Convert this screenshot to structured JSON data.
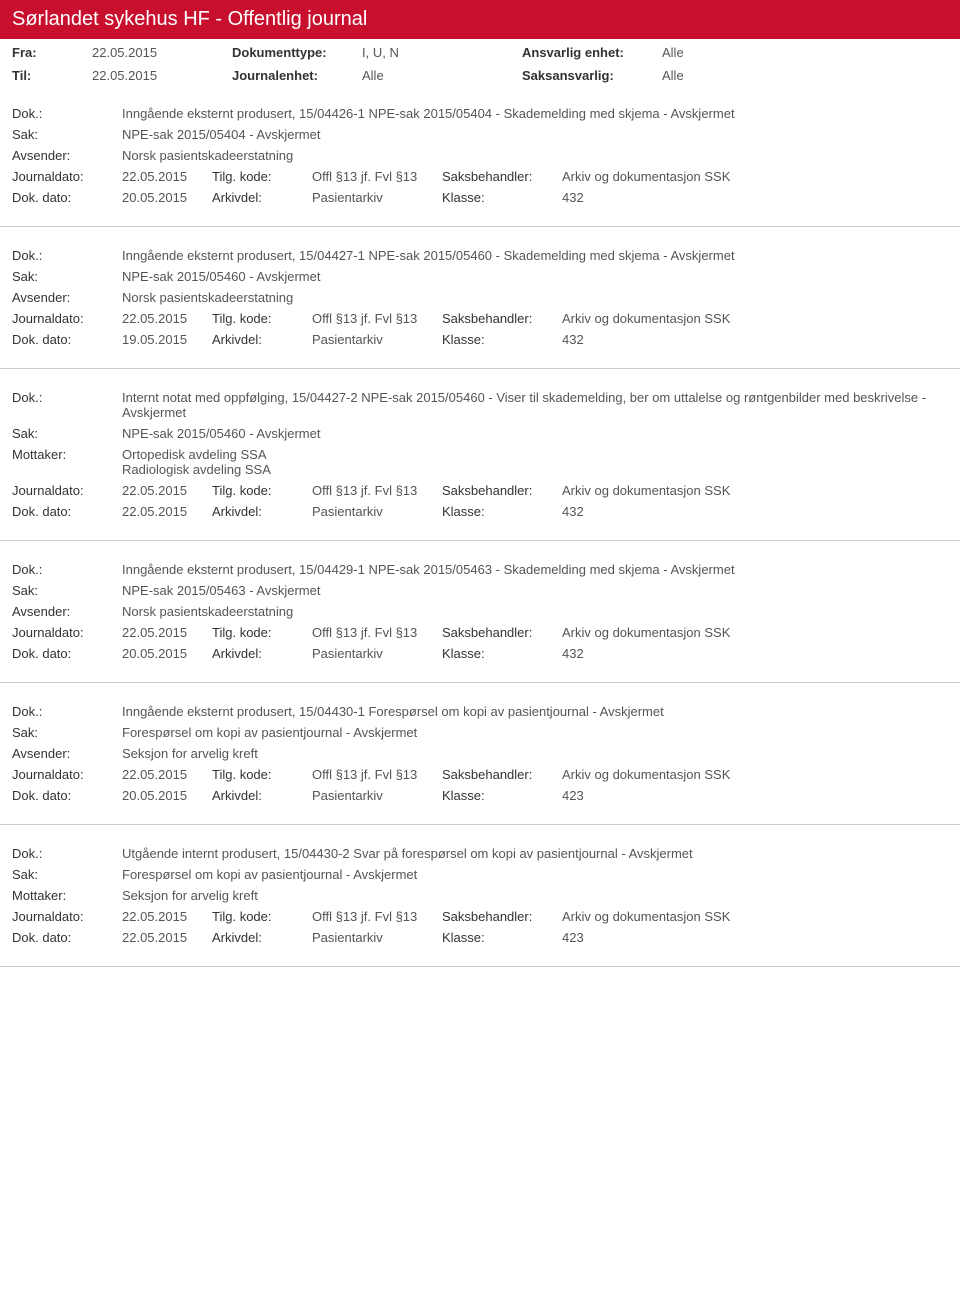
{
  "colors": {
    "header_bg": "#c8102e",
    "header_text": "#ffffff",
    "body_text": "#333333",
    "value_text": "#555555",
    "divider": "#cccccc"
  },
  "header": {
    "title": "Sørlandet sykehus HF - Offentlig journal"
  },
  "filters": {
    "fra_label": "Fra:",
    "fra_value": "22.05.2015",
    "til_label": "Til:",
    "til_value": "22.05.2015",
    "doktype_label": "Dokumenttype:",
    "doktype_value": "I, U, N",
    "journalenhet_label": "Journalenhet:",
    "journalenhet_value": "Alle",
    "ansvarlig_label": "Ansvarlig enhet:",
    "ansvarlig_value": "Alle",
    "saksansvarlig_label": "Saksansvarlig:",
    "saksansvarlig_value": "Alle"
  },
  "labels": {
    "dok": "Dok.:",
    "sak": "Sak:",
    "avsender": "Avsender:",
    "mottaker": "Mottaker:",
    "journaldato": "Journaldato:",
    "tilgkode": "Tilg. kode:",
    "saksbehandler": "Saksbehandler:",
    "dokdato": "Dok. dato:",
    "arkivdel": "Arkivdel:",
    "klasse": "Klasse:"
  },
  "entries": [
    {
      "dok": "Inngående eksternt produsert, 15/04426-1 NPE-sak 2015/05404 - Skademelding med skjema - Avskjermet",
      "sak": "NPE-sak 2015/05404 - Avskjermet",
      "party_label": "Avsender:",
      "party_value": "Norsk pasientskadeerstatning",
      "journaldato": "22.05.2015",
      "tilgkode": "Offl §13 jf. Fvl §13",
      "saksbehandler": "Arkiv og dokumentasjon SSK",
      "dokdato": "20.05.2015",
      "arkivdel": "Pasientarkiv",
      "klasse": "432"
    },
    {
      "dok": "Inngående eksternt produsert, 15/04427-1 NPE-sak 2015/05460 - Skademelding med skjema - Avskjermet",
      "sak": "NPE-sak 2015/05460 - Avskjermet",
      "party_label": "Avsender:",
      "party_value": "Norsk pasientskadeerstatning",
      "journaldato": "22.05.2015",
      "tilgkode": "Offl §13 jf. Fvl §13",
      "saksbehandler": "Arkiv og dokumentasjon SSK",
      "dokdato": "19.05.2015",
      "arkivdel": "Pasientarkiv",
      "klasse": "432"
    },
    {
      "dok": "Internt notat med oppfølging, 15/04427-2 NPE-sak 2015/05460 - Viser til skademelding, ber om uttalelse og røntgenbilder med beskrivelse - Avskjermet",
      "sak": "NPE-sak 2015/05460 - Avskjermet",
      "party_label": "Mottaker:",
      "party_value": "Ortopedisk avdeling SSA\nRadiologisk avdeling SSA",
      "journaldato": "22.05.2015",
      "tilgkode": "Offl §13 jf. Fvl §13",
      "saksbehandler": "Arkiv og dokumentasjon SSK",
      "dokdato": "22.05.2015",
      "arkivdel": "Pasientarkiv",
      "klasse": "432"
    },
    {
      "dok": "Inngående eksternt produsert, 15/04429-1 NPE-sak 2015/05463 - Skademelding med skjema - Avskjermet",
      "sak": "NPE-sak 2015/05463 - Avskjermet",
      "party_label": "Avsender:",
      "party_value": "Norsk pasientskadeerstatning",
      "journaldato": "22.05.2015",
      "tilgkode": "Offl §13 jf. Fvl §13",
      "saksbehandler": "Arkiv og dokumentasjon SSK",
      "dokdato": "20.05.2015",
      "arkivdel": "Pasientarkiv",
      "klasse": "432"
    },
    {
      "dok": "Inngående eksternt produsert, 15/04430-1 Forespørsel om kopi av pasientjournal - Avskjermet",
      "sak": "Forespørsel om kopi av pasientjournal - Avskjermet",
      "party_label": "Avsender:",
      "party_value": "Seksjon for arvelig kreft",
      "journaldato": "22.05.2015",
      "tilgkode": "Offl §13 jf. Fvl §13",
      "saksbehandler": "Arkiv og dokumentasjon SSK",
      "dokdato": "20.05.2015",
      "arkivdel": "Pasientarkiv",
      "klasse": "423"
    },
    {
      "dok": "Utgående internt produsert, 15/04430-2 Svar på forespørsel om kopi av pasientjournal - Avskjermet",
      "sak": "Forespørsel om kopi av pasientjournal - Avskjermet",
      "party_label": "Mottaker:",
      "party_value": "Seksjon for arvelig kreft",
      "journaldato": "22.05.2015",
      "tilgkode": "Offl §13 jf. Fvl §13",
      "saksbehandler": "Arkiv og dokumentasjon SSK",
      "dokdato": "22.05.2015",
      "arkivdel": "Pasientarkiv",
      "klasse": "423"
    }
  ]
}
